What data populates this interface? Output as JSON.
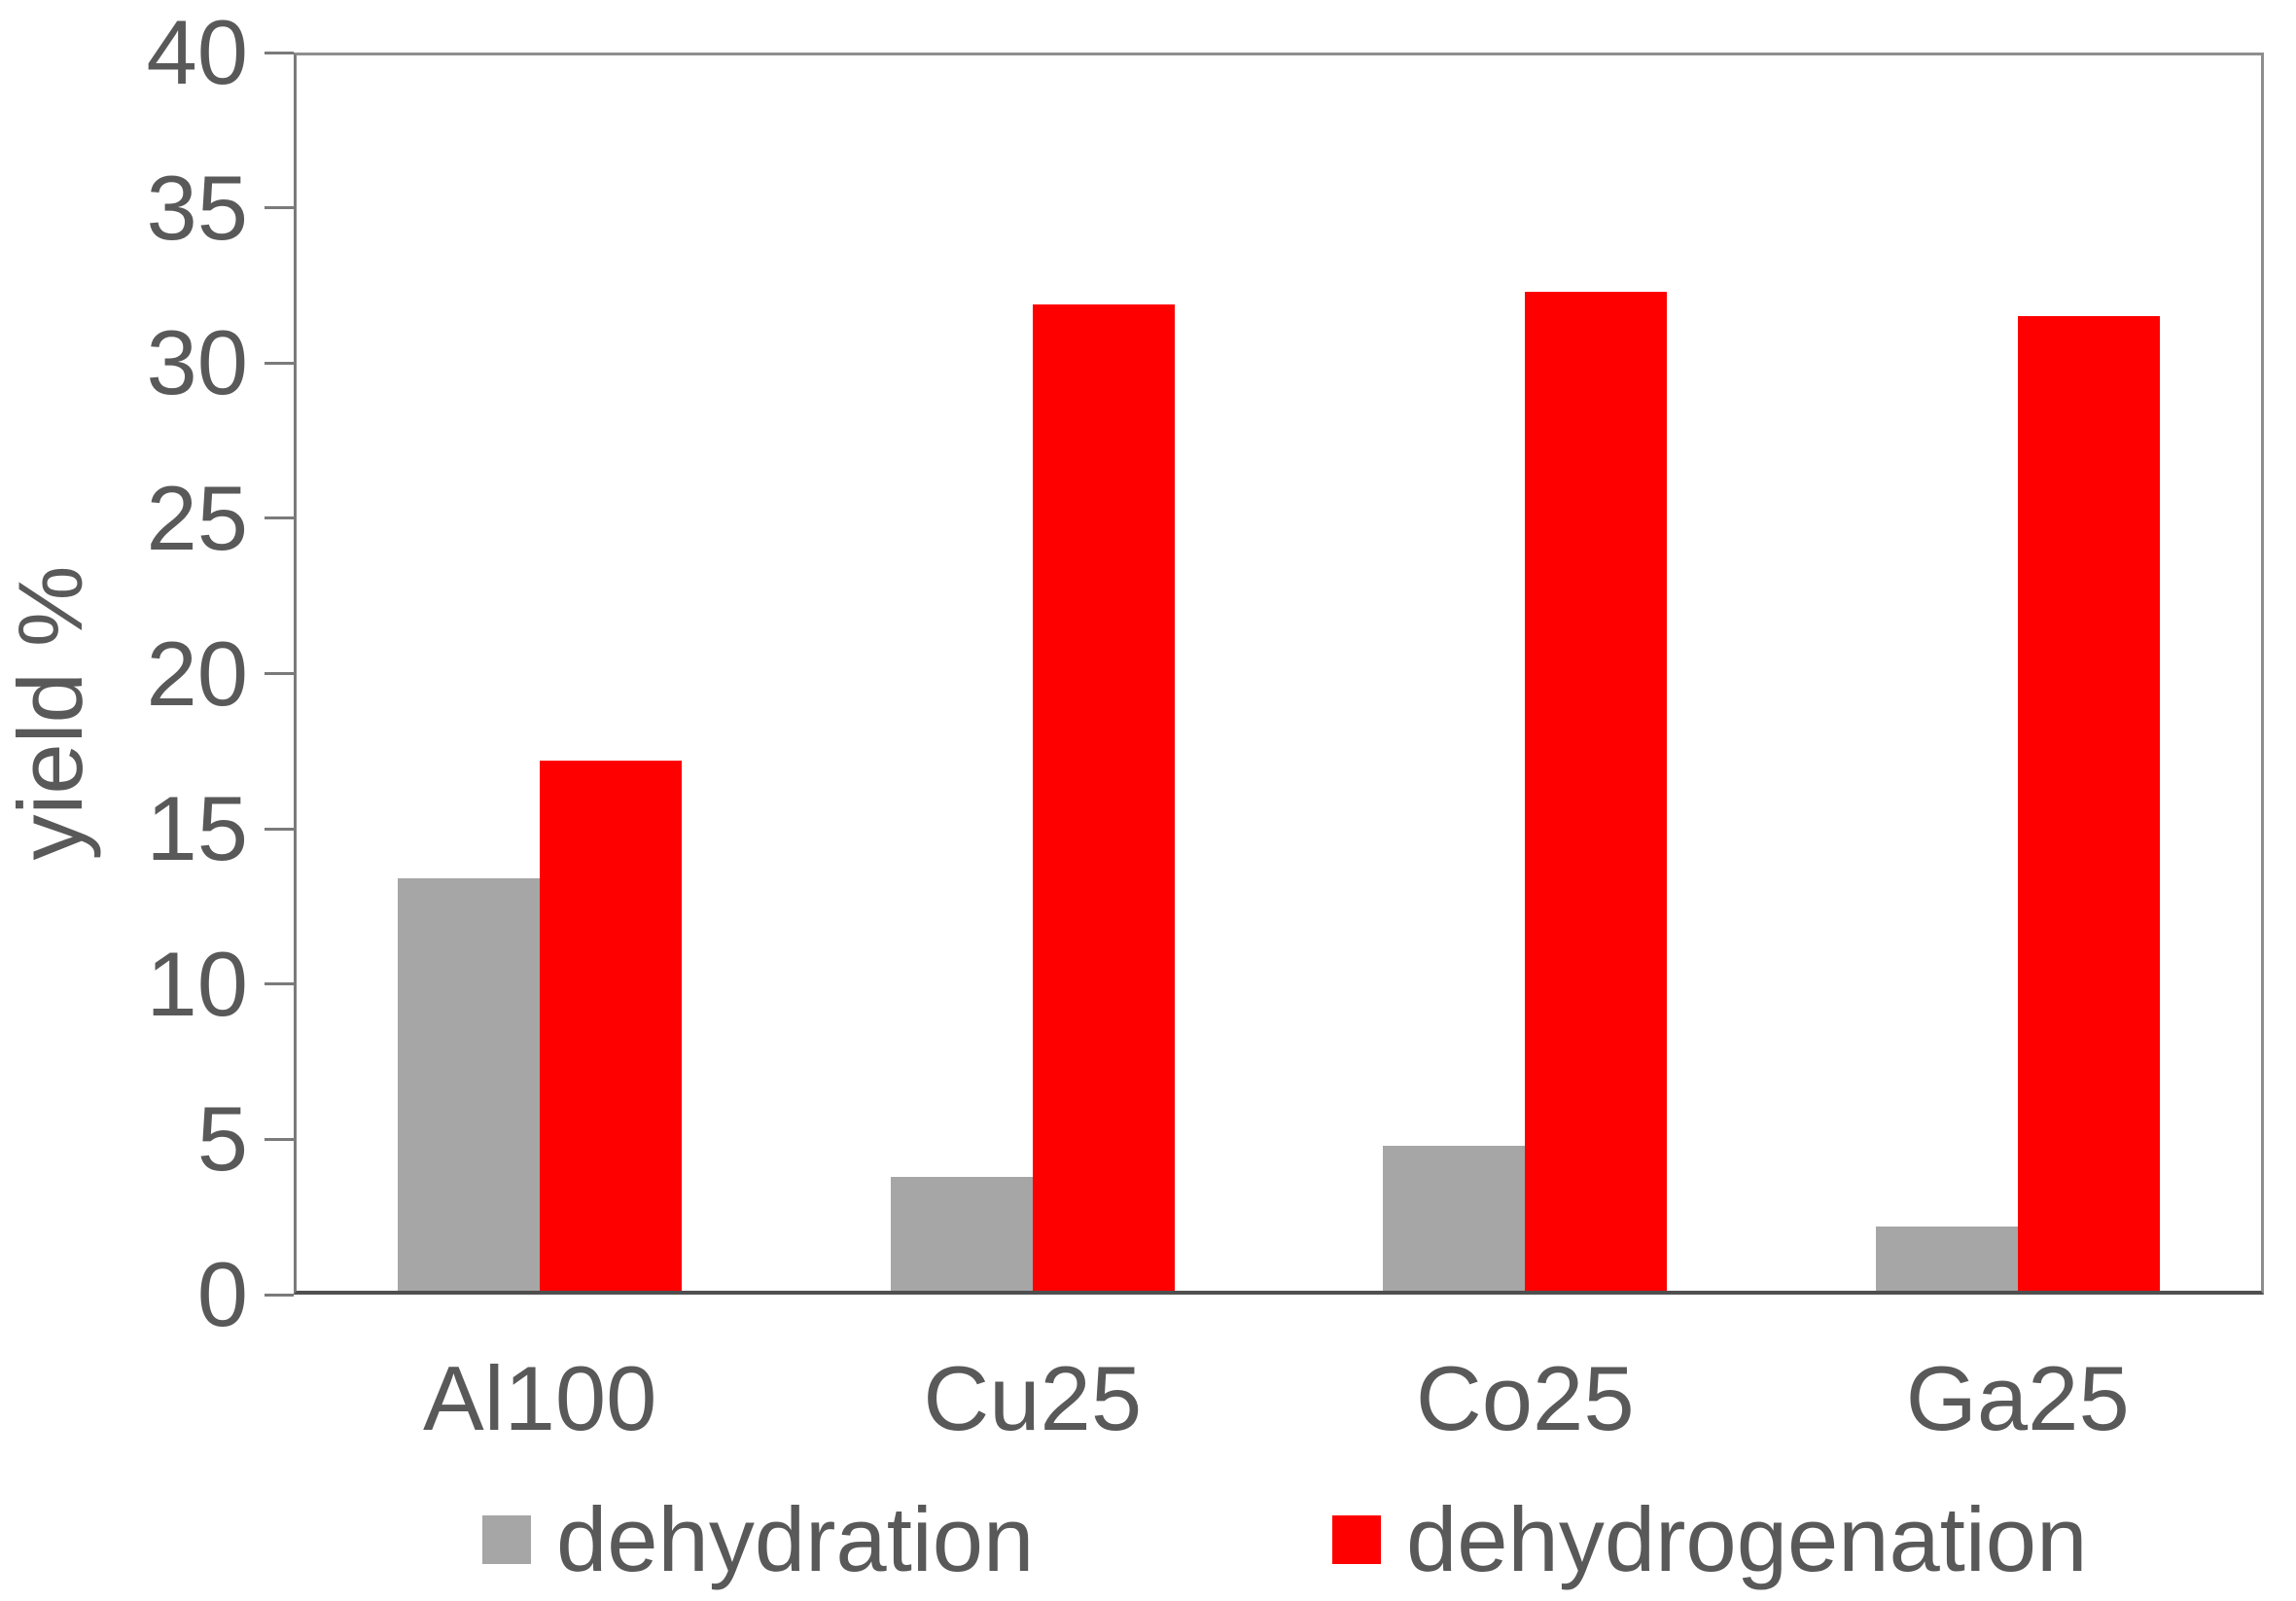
{
  "chart_data": {
    "type": "bar",
    "title": "",
    "ylabel": "yield %",
    "xlabel": "",
    "categories": [
      "Al100",
      "Cu25",
      "Co25",
      "Ga25"
    ],
    "series": [
      {
        "name": "dehydration",
        "color": "#a6a6a6",
        "values": [
          13.4,
          3.8,
          4.8,
          2.2
        ]
      },
      {
        "name": "dehydrogenation",
        "color": "#ff0000",
        "values": [
          17.2,
          31.9,
          32.3,
          31.5
        ]
      }
    ],
    "ylim": [
      0,
      40
    ],
    "ytick_step": 5,
    "yticks": [
      0,
      5,
      10,
      15,
      20,
      25,
      30,
      35,
      40
    ],
    "grid": false,
    "legend_position": "bottom"
  },
  "colors": {
    "bar_gray": "#a6a6a6",
    "bar_red": "#ff0000",
    "text": "#595959",
    "axis_line": "#7a7a7a",
    "frame_line": "#8e8e8e",
    "baseline": "#4f4f4f",
    "background": "#ffffff"
  }
}
